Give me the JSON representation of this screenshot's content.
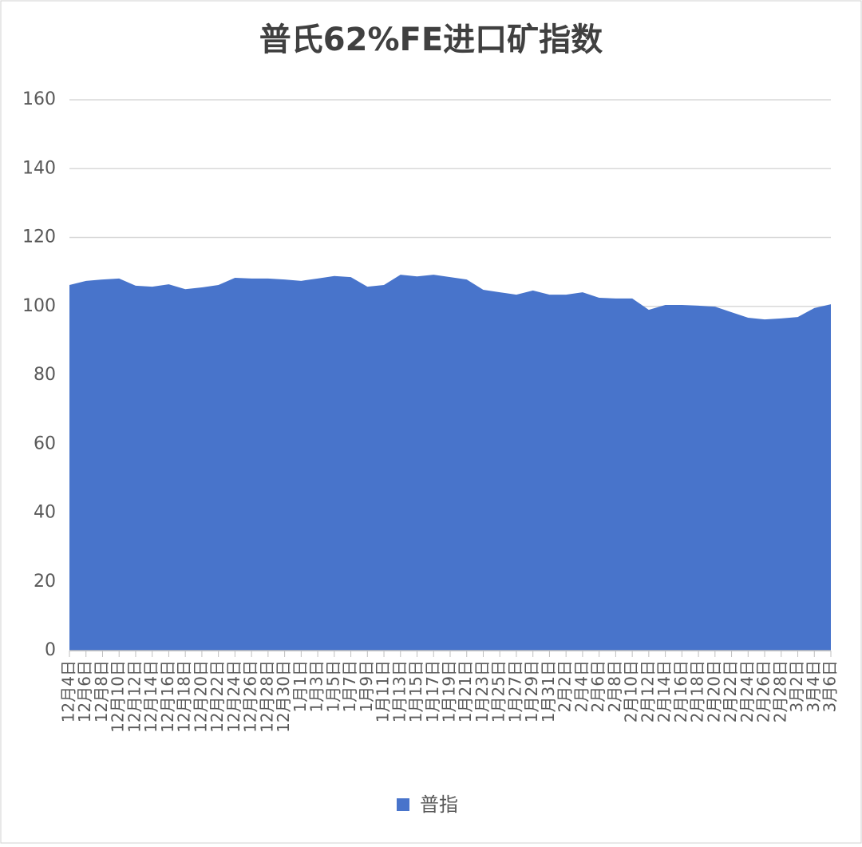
{
  "chart_data": {
    "type": "area",
    "title": "普氏62%FE进口矿指数",
    "categories": [
      "12月4日",
      "12月6日",
      "12月8日",
      "12月10日",
      "12月12日",
      "12月14日",
      "12月16日",
      "12月18日",
      "12月20日",
      "12月22日",
      "12月24日",
      "12月26日",
      "12月28日",
      "12月30日",
      "1月1日",
      "1月3日",
      "1月5日",
      "1月7日",
      "1月9日",
      "1月11日",
      "1月13日",
      "1月15日",
      "1月17日",
      "1月19日",
      "1月21日",
      "1月23日",
      "1月25日",
      "1月27日",
      "1月29日",
      "1月31日",
      "2月2日",
      "2月4日",
      "2月6日",
      "2月8日",
      "2月10日",
      "2月12日",
      "2月14日",
      "2月16日",
      "2月18日",
      "2月20日",
      "2月22日",
      "2月24日",
      "2月26日",
      "2月28日",
      "3月2日",
      "3月4日",
      "3月6日"
    ],
    "series": [
      {
        "name": "普指",
        "color": "#4874cb",
        "values": [
          106.2,
          107.4,
          107.8,
          108.1,
          106,
          105.7,
          106.4,
          105,
          105.5,
          106.2,
          108.3,
          108.1,
          108.1,
          107.8,
          107.4,
          108.1,
          108.8,
          108.5,
          105.7,
          106.2,
          109.2,
          108.7,
          109.2,
          108.5,
          107.8,
          104.8,
          104.1,
          103.4,
          104.6,
          103.4,
          103.4,
          104.1,
          102.5,
          102.3,
          102.3,
          99,
          100.4,
          100.4,
          100.2,
          99.9,
          98.3,
          96.7,
          96.2,
          96.5,
          96.9,
          99.5,
          100.6
        ]
      }
    ],
    "ylim": [
      0,
      160
    ],
    "yticks": [
      0,
      20,
      40,
      60,
      80,
      100,
      120,
      140,
      160
    ],
    "grid": true,
    "legend": "bottom"
  }
}
